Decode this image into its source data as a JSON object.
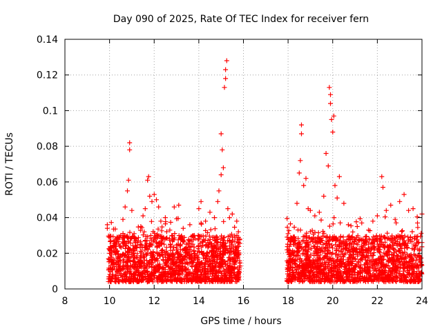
{
  "chart_data": {
    "type": "scatter",
    "title": "Day 090 of 2025, Rate Of TEC Index for receiver fern",
    "xlabel": "GPS time / hours",
    "ylabel": "ROTI / TECUs",
    "xlim": [
      8,
      24
    ],
    "ylim": [
      0,
      0.14
    ],
    "x_ticks": [
      "8",
      "10",
      "12",
      "14",
      "16",
      "18",
      "20",
      "22",
      "24"
    ],
    "y_ticks": [
      "0",
      "0.02",
      "0.04",
      "0.06",
      "0.08",
      "0.1",
      "0.12",
      "0.14"
    ],
    "grid": true,
    "marker": "+",
    "color": "#ff0000",
    "series": [
      {
        "points": [
          [
            9.9,
            0.036
          ],
          [
            9.9,
            0.034
          ],
          [
            10.0,
            0.02
          ],
          [
            10.1,
            0.015
          ],
          [
            10.3,
            0.024
          ],
          [
            10.4,
            0.018
          ],
          [
            10.5,
            0.03
          ],
          [
            10.6,
            0.039
          ],
          [
            10.7,
            0.046
          ],
          [
            10.8,
            0.055
          ],
          [
            10.85,
            0.061
          ],
          [
            10.9,
            0.082
          ],
          [
            10.9,
            0.078
          ],
          [
            11.0,
            0.044
          ],
          [
            11.1,
            0.031
          ],
          [
            11.2,
            0.028
          ],
          [
            11.4,
            0.035
          ],
          [
            11.5,
            0.041
          ],
          [
            11.6,
            0.045
          ],
          [
            11.7,
            0.061
          ],
          [
            11.75,
            0.063
          ],
          [
            11.8,
            0.052
          ],
          [
            11.9,
            0.049
          ],
          [
            12.0,
            0.053
          ],
          [
            12.1,
            0.05
          ],
          [
            12.2,
            0.046
          ],
          [
            12.3,
            0.038
          ],
          [
            12.5,
            0.04
          ],
          [
            12.7,
            0.033
          ],
          [
            12.9,
            0.046
          ],
          [
            13.1,
            0.047
          ],
          [
            13.3,
            0.034
          ],
          [
            13.6,
            0.036
          ],
          [
            13.8,
            0.03
          ],
          [
            14.0,
            0.045
          ],
          [
            14.1,
            0.049
          ],
          [
            14.3,
            0.038
          ],
          [
            14.5,
            0.043
          ],
          [
            14.7,
            0.04
          ],
          [
            14.85,
            0.049
          ],
          [
            14.9,
            0.055
          ],
          [
            15.0,
            0.064
          ],
          [
            15.0,
            0.087
          ],
          [
            15.05,
            0.078
          ],
          [
            15.1,
            0.068
          ],
          [
            15.15,
            0.113
          ],
          [
            15.2,
            0.118
          ],
          [
            15.2,
            0.123
          ],
          [
            15.25,
            0.128
          ],
          [
            15.3,
            0.045
          ],
          [
            15.5,
            0.042
          ],
          [
            15.7,
            0.038
          ],
          [
            18.0,
            0.031
          ],
          [
            18.2,
            0.028
          ],
          [
            18.4,
            0.048
          ],
          [
            18.5,
            0.065
          ],
          [
            18.55,
            0.072
          ],
          [
            18.6,
            0.092
          ],
          [
            18.6,
            0.087
          ],
          [
            18.7,
            0.058
          ],
          [
            18.8,
            0.062
          ],
          [
            18.9,
            0.045
          ],
          [
            19.0,
            0.044
          ],
          [
            19.2,
            0.041
          ],
          [
            19.4,
            0.043
          ],
          [
            19.6,
            0.052
          ],
          [
            19.7,
            0.076
          ],
          [
            19.8,
            0.069
          ],
          [
            19.85,
            0.113
          ],
          [
            19.9,
            0.109
          ],
          [
            19.9,
            0.104
          ],
          [
            19.95,
            0.095
          ],
          [
            20.0,
            0.088
          ],
          [
            20.05,
            0.097
          ],
          [
            20.1,
            0.058
          ],
          [
            20.2,
            0.051
          ],
          [
            20.3,
            0.063
          ],
          [
            20.5,
            0.048
          ],
          [
            20.7,
            0.036
          ],
          [
            20.9,
            0.032
          ],
          [
            21.1,
            0.035
          ],
          [
            21.3,
            0.037
          ],
          [
            21.6,
            0.033
          ],
          [
            21.8,
            0.038
          ],
          [
            22.0,
            0.041
          ],
          [
            22.2,
            0.063
          ],
          [
            22.25,
            0.057
          ],
          [
            22.4,
            0.044
          ],
          [
            22.6,
            0.047
          ],
          [
            22.8,
            0.039
          ],
          [
            23.0,
            0.049
          ],
          [
            23.2,
            0.053
          ],
          [
            23.4,
            0.044
          ],
          [
            23.6,
            0.045
          ],
          [
            23.8,
            0.037
          ],
          [
            24.0,
            0.042
          ]
        ],
        "dense_bands": [
          {
            "x_range": [
              9.95,
              15.85
            ],
            "y_range": [
              0.004,
              0.03
            ]
          },
          {
            "x_range": [
              17.95,
              24.0
            ],
            "y_range": [
              0.004,
              0.03
            ]
          }
        ]
      }
    ]
  }
}
